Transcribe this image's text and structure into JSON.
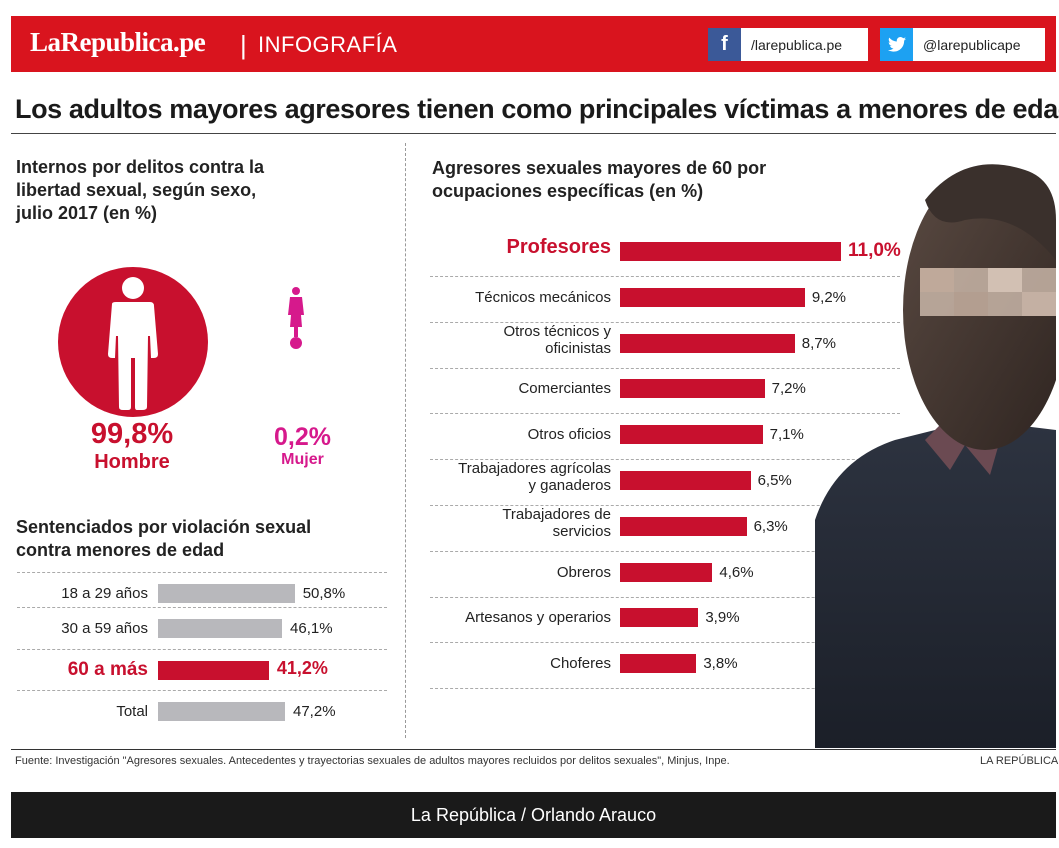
{
  "header": {
    "brand": "LaRepublica.pe",
    "separator": "|",
    "section": "INFOGRAFÍA",
    "facebook": {
      "icon": "facebook-icon",
      "glyph": "f",
      "handle": "/larepublica.pe"
    },
    "twitter": {
      "icon": "twitter-icon",
      "glyph": "t",
      "handle": "@larepublicape"
    }
  },
  "title": "Los adultos mayores agresores tienen como principales víctimas a menores de edad",
  "sex_panel": {
    "heading": [
      "Internos por delitos contra la",
      "libertad sexual, según sexo,",
      "julio 2017 (en %)"
    ],
    "male": {
      "percent": "99,8%",
      "label": "Hombre",
      "icon": "male-icon"
    },
    "female": {
      "percent": "0,2%",
      "label": "Mujer",
      "icon": "female-icon"
    }
  },
  "age_panel": {
    "heading": [
      "Sentenciados por violación sexual",
      "contra menores de edad"
    ]
  },
  "occupation_panel": {
    "heading": [
      "Agresores sexuales mayores de 60 por",
      "ocupaciones específicas (en %)"
    ]
  },
  "chart_data": [
    {
      "type": "pie",
      "title": "Internos por delitos contra la libertad sexual, según sexo, julio 2017 (en %)",
      "categories": [
        "Hombre",
        "Mujer"
      ],
      "values": [
        99.8,
        0.2
      ],
      "labels": [
        "99,8%",
        "0,2%"
      ]
    },
    {
      "type": "bar",
      "orientation": "horizontal",
      "title": "Sentenciados por violación sexual contra menores de edad",
      "categories": [
        "18 a 29 años",
        "30 a 59 años",
        "60 a más",
        "Total"
      ],
      "values": [
        50.8,
        46.1,
        41.2,
        47.2
      ],
      "labels": [
        "50,8%",
        "46,1%",
        "41,2%",
        "47,2%"
      ],
      "highlight": [
        "60 a más"
      ],
      "xlim": [
        0,
        55
      ]
    },
    {
      "type": "bar",
      "orientation": "horizontal",
      "title": "Agresores sexuales mayores de 60 por ocupaciones específicas (en %)",
      "categories": [
        "Profesores",
        "Técnicos mecánicos",
        "Otros técnicos y oficinistas",
        "Comerciantes",
        "Otros oficios",
        "Trabajadores agrícolas y ganaderos",
        "Trabajadores de servicios",
        "Obreros",
        "Artesanos y operarios",
        "Choferes"
      ],
      "label_lines": [
        [
          "Profesores"
        ],
        [
          "Técnicos mecánicos"
        ],
        [
          "Otros técnicos y",
          "oficinistas"
        ],
        [
          "Comerciantes"
        ],
        [
          "Otros oficios"
        ],
        [
          "Trabajadores agrícolas",
          "y ganaderos"
        ],
        [
          "Trabajadores de",
          "servicios"
        ],
        [
          "Obreros"
        ],
        [
          "Artesanos y operarios"
        ],
        [
          "Choferes"
        ]
      ],
      "values": [
        11.0,
        9.2,
        8.7,
        7.2,
        7.1,
        6.5,
        6.3,
        4.6,
        3.9,
        3.8
      ],
      "labels": [
        "11,0%",
        "9,2%",
        "8,7%",
        "7,2%",
        "7,1%",
        "6,5%",
        "6,3%",
        "4,6%",
        "3,9%",
        "3,8%"
      ],
      "highlight": [
        "Profesores"
      ],
      "xlim": [
        0,
        11
      ]
    }
  ],
  "colors": {
    "brand_red": "#d9141e",
    "bar_red": "#c8102e",
    "bar_gray": "#b8b8bc",
    "female_pink": "#d6198c"
  },
  "source": "Fuente: Investigación \"Agresores sexuales. Antecedentes y trayectorias sexuales de adultos mayores recluidos por delitos sexuales\", Minjus, Inpe.",
  "credit_small": "LA REPÚBLICA",
  "footer": "La República / Orlando Arauco"
}
